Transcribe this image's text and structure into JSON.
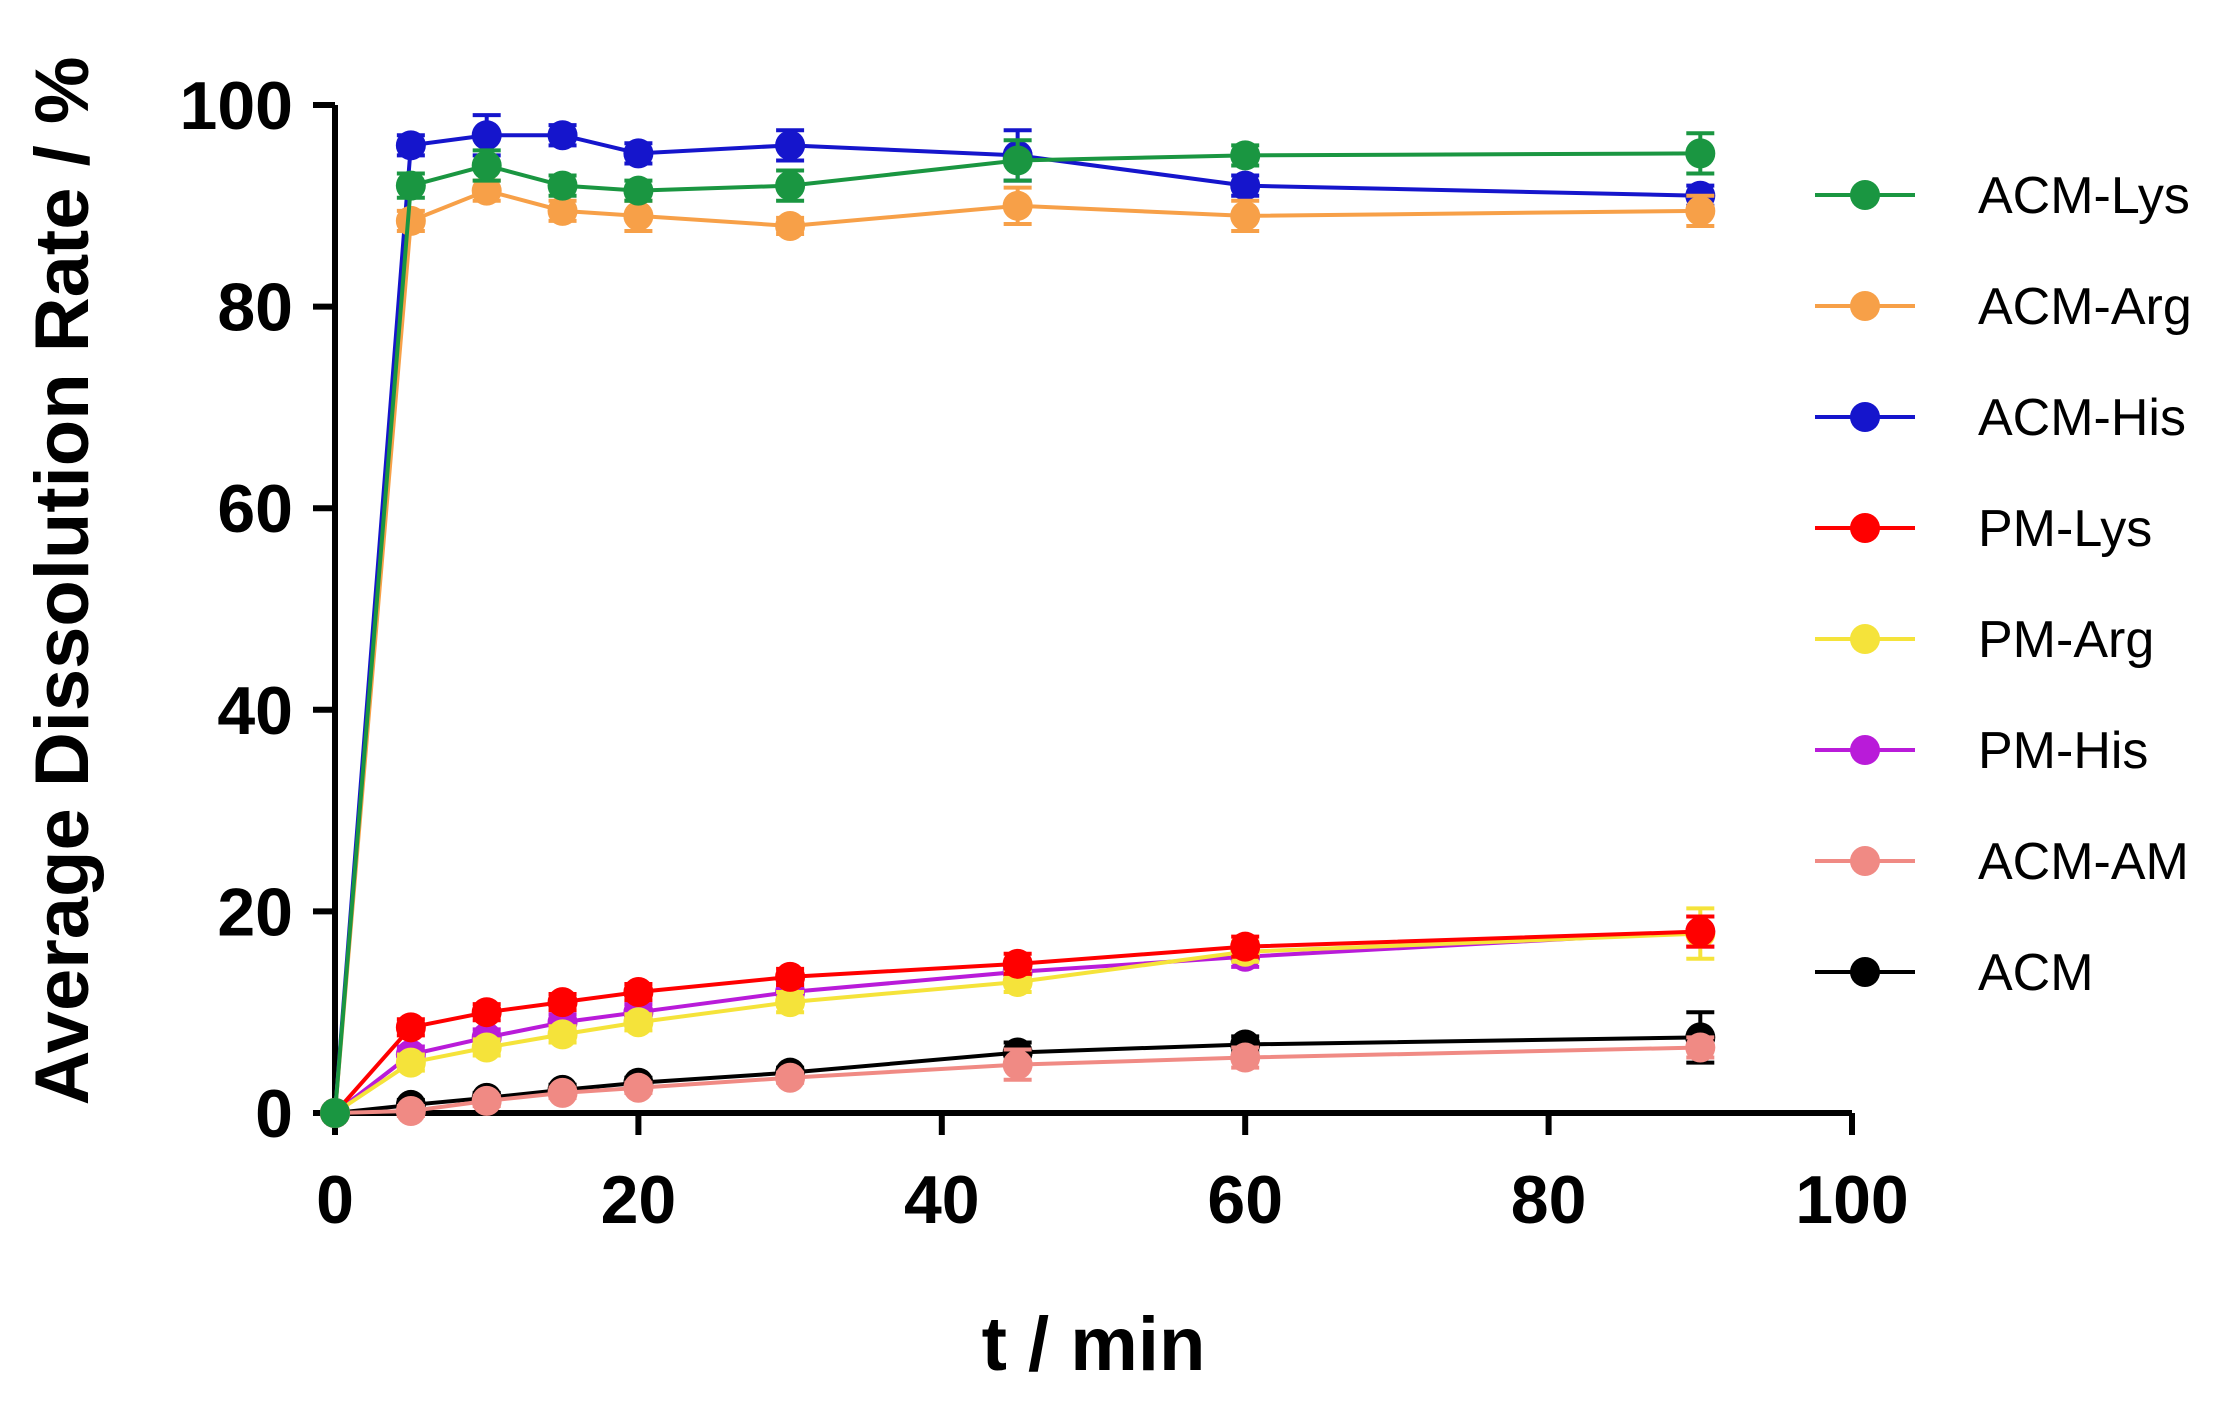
{
  "chart_data": {
    "type": "line",
    "title": "",
    "xlabel": "t / min",
    "ylabel": "Average Dissolution Rate / %",
    "xlim": [
      0,
      100
    ],
    "ylim": [
      0,
      100
    ],
    "xticks": [
      0,
      20,
      40,
      60,
      80,
      100
    ],
    "yticks": [
      0,
      20,
      40,
      60,
      80,
      100
    ],
    "grid": false,
    "legend_position": "right",
    "x": [
      0,
      5,
      10,
      15,
      20,
      30,
      45,
      60,
      90
    ],
    "series": [
      {
        "name": "ACM-Lys",
        "color": "#1a9641",
        "values": [
          0,
          92,
          94,
          92,
          91.5,
          92,
          94.5,
          95,
          95.2
        ],
        "errors": [
          0,
          1.2,
          1.5,
          1.0,
          1.0,
          1.5,
          2.0,
          1.0,
          2.0
        ]
      },
      {
        "name": "ACM-Arg",
        "color": "#f7a048",
        "values": [
          0,
          88.5,
          91.5,
          89.5,
          89,
          88,
          90,
          89,
          89.5
        ],
        "errors": [
          0,
          1.0,
          1.0,
          1.0,
          1.5,
          0.8,
          1.8,
          1.5,
          1.5
        ]
      },
      {
        "name": "ACM-His",
        "color": "#1515cc",
        "values": [
          0,
          96,
          97,
          97,
          95.2,
          96,
          95,
          92,
          91
        ],
        "errors": [
          0,
          1.0,
          2.0,
          1.0,
          1.0,
          1.5,
          2.5,
          1.0,
          1.0
        ]
      },
      {
        "name": "PM-Lys",
        "color": "#ff0000",
        "values": [
          0,
          8.5,
          10,
          11,
          12,
          13.5,
          14.8,
          16.5,
          18
        ],
        "errors": [
          0,
          0.8,
          0.8,
          0.8,
          0.8,
          0.8,
          1.0,
          1.0,
          1.5
        ]
      },
      {
        "name": "PM-Arg",
        "color": "#f5e33a",
        "values": [
          0,
          5,
          6.5,
          7.8,
          9,
          11,
          13,
          16,
          17.8
        ],
        "errors": [
          0,
          0.8,
          0.8,
          0.8,
          0.8,
          1.0,
          1.0,
          1.0,
          2.5
        ]
      },
      {
        "name": "PM-His",
        "color": "#b91bd9",
        "values": [
          0,
          5.8,
          7.5,
          9,
          10,
          12,
          14,
          15.5,
          18
        ],
        "errors": [
          0,
          0.8,
          0.8,
          0.8,
          0.8,
          0.8,
          1.0,
          1.0,
          1.5
        ]
      },
      {
        "name": "ACM-AM",
        "color": "#f08a84",
        "values": [
          0,
          0.2,
          1.2,
          2,
          2.5,
          3.5,
          4.8,
          5.5,
          6.5
        ],
        "errors": [
          0,
          0.5,
          0.5,
          0.5,
          0.5,
          0.5,
          1.5,
          1.0,
          1.0
        ]
      },
      {
        "name": "ACM",
        "color": "#000000",
        "values": [
          0,
          0.8,
          1.5,
          2.3,
          3,
          4,
          6,
          6.8,
          7.5
        ],
        "errors": [
          0,
          0.5,
          0.5,
          0.5,
          0.5,
          0.5,
          1.0,
          0.8,
          2.5
        ]
      }
    ]
  }
}
